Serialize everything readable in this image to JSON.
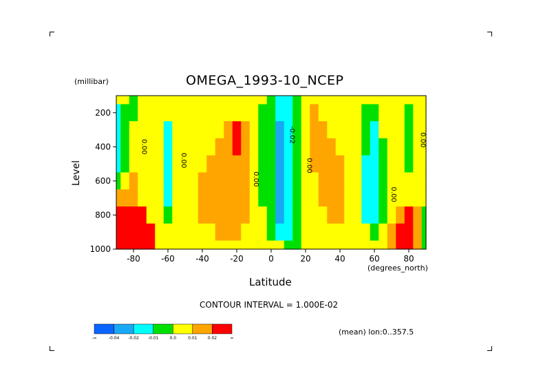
{
  "chart_data": {
    "type": "heatmap",
    "title": "OMEGA_1993-10_NCEP",
    "ylabel": "Level",
    "y_units": "(millibar)",
    "xlabel": "Latitude",
    "x_units": "(degrees_north)",
    "xlim": [
      -90,
      90
    ],
    "ylim": [
      1000,
      100
    ],
    "x_ticks": [
      -80,
      -60,
      -40,
      -20,
      0,
      20,
      40,
      60,
      80
    ],
    "x_tick_labels": [
      "-80",
      "-60",
      "-40",
      "-20",
      "0",
      "20",
      "40",
      "60",
      "80"
    ],
    "y_ticks": [
      200,
      400,
      600,
      800,
      1000
    ],
    "y_tick_labels": [
      "200",
      "400",
      "600",
      "800",
      "1000"
    ],
    "contour_interval_text": "CONTOUR INTERVAL = 1.000E-02",
    "mean_text": "(mean) lon:0..357.5",
    "contour_labels": [
      {
        "text": "0.00",
        "lat": -75,
        "level": 400
      },
      {
        "text": "0.00",
        "lat": -52,
        "level": 480
      },
      {
        "text": "0.00",
        "lat": -10,
        "level": 590
      },
      {
        "text": "-0.02",
        "lat": 11,
        "level": 330
      },
      {
        "text": "0.00",
        "lat": 21,
        "level": 510
      },
      {
        "text": "0.00",
        "lat": 70,
        "level": 680
      },
      {
        "text": "0.00",
        "lat": 87,
        "level": 360
      }
    ],
    "colorbar": {
      "colors": [
        "#0a64ff",
        "#19a8f5",
        "#00ffff",
        "#00e000",
        "#ffff00",
        "#ffa500",
        "#ff0000"
      ],
      "labels": [
        "-∞",
        "-0.04",
        "-0.02",
        "-0.01",
        "0.0",
        "0.01",
        "0.02",
        "∞"
      ]
    },
    "value_bins": {
      "edges": [
        -0.04,
        -0.02,
        -0.01,
        0.0,
        0.01,
        0.02
      ],
      "note_levels": "mb"
    },
    "lat": [
      -90,
      -85,
      -80,
      -75,
      -70,
      -65,
      -60,
      -55,
      -50,
      -45,
      -40,
      -35,
      -30,
      -25,
      -20,
      -15,
      -10,
      -5,
      0,
      5,
      10,
      15,
      20,
      25,
      30,
      35,
      40,
      45,
      50,
      55,
      60,
      65,
      70,
      75,
      80,
      85,
      90
    ],
    "level": [
      100,
      200,
      300,
      400,
      500,
      600,
      700,
      800,
      900,
      1000
    ],
    "values": [
      [
        0.0,
        0.0,
        -0.005,
        0.005,
        0.005,
        0.0,
        0.0,
        0.005,
        0.005,
        0.005,
        0.005,
        0.0,
        0.0,
        0.005,
        0.005,
        0.005,
        0.0,
        0.0,
        -0.005,
        -0.015,
        -0.015,
        -0.005,
        0.005,
        0.005,
        0.005,
        0.005,
        0.005,
        0.0,
        0.0,
        0.0,
        0.0,
        0.005,
        0.0,
        0.0,
        0.0,
        0.005,
        0.005
      ],
      [
        -0.015,
        -0.005,
        -0.005,
        0.005,
        0.005,
        0.005,
        0.0,
        0.005,
        0.005,
        0.005,
        0.005,
        0.005,
        0.005,
        0.005,
        0.005,
        0.005,
        0.005,
        -0.005,
        -0.005,
        -0.015,
        -0.015,
        -0.005,
        0.005,
        0.015,
        0.005,
        0.005,
        0.005,
        0.005,
        0.0,
        -0.005,
        -0.005,
        0.005,
        0.005,
        0.0,
        -0.005,
        0.0,
        0.005
      ],
      [
        -0.015,
        -0.005,
        0.0,
        0.005,
        0.005,
        0.0,
        -0.015,
        0.0,
        0.005,
        0.005,
        0.005,
        0.005,
        0.005,
        0.015,
        0.025,
        0.015,
        0.005,
        -0.005,
        -0.005,
        -0.035,
        -0.015,
        -0.005,
        0.005,
        0.015,
        0.015,
        0.005,
        0.005,
        0.005,
        0.0,
        -0.005,
        -0.015,
        0.005,
        0.005,
        0.0,
        -0.005,
        0.0,
        0.005
      ],
      [
        -0.015,
        -0.005,
        0.0,
        0.005,
        0.005,
        0.0,
        -0.015,
        0.0,
        0.005,
        0.005,
        0.005,
        0.005,
        0.015,
        0.015,
        0.025,
        0.015,
        0.005,
        -0.005,
        -0.005,
        -0.035,
        -0.015,
        -0.005,
        0.005,
        0.015,
        0.015,
        0.015,
        0.005,
        0.005,
        0.0,
        -0.005,
        -0.015,
        -0.005,
        0.005,
        0.0,
        -0.005,
        0.0,
        0.005
      ],
      [
        -0.015,
        -0.005,
        0.005,
        0.005,
        0.005,
        0.0,
        -0.015,
        0.0,
        0.005,
        0.005,
        0.005,
        0.015,
        0.015,
        0.015,
        0.015,
        0.015,
        0.005,
        -0.005,
        -0.005,
        -0.035,
        -0.015,
        -0.005,
        0.005,
        0.015,
        0.015,
        0.015,
        0.015,
        0.005,
        0.0,
        -0.015,
        -0.015,
        -0.005,
        0.005,
        0.0,
        -0.005,
        0.0,
        0.005
      ],
      [
        -0.005,
        0.005,
        0.015,
        0.005,
        0.005,
        0.0,
        -0.015,
        0.0,
        0.005,
        0.005,
        0.015,
        0.015,
        0.015,
        0.015,
        0.015,
        0.015,
        0.005,
        -0.005,
        -0.005,
        -0.035,
        -0.015,
        -0.005,
        0.005,
        0.005,
        0.015,
        0.015,
        0.015,
        0.005,
        0.0,
        -0.015,
        -0.015,
        -0.005,
        0.005,
        0.005,
        0.0,
        0.0,
        0.005
      ],
      [
        0.015,
        0.015,
        0.015,
        0.005,
        0.005,
        0.0,
        -0.015,
        0.0,
        0.005,
        0.005,
        0.015,
        0.015,
        0.015,
        0.015,
        0.015,
        0.015,
        0.005,
        -0.005,
        -0.005,
        -0.035,
        -0.015,
        -0.005,
        0.005,
        0.005,
        0.015,
        0.015,
        0.015,
        0.005,
        0.0,
        -0.015,
        -0.015,
        -0.005,
        0.005,
        0.005,
        0.005,
        0.0,
        0.005
      ],
      [
        0.035,
        0.035,
        0.025,
        0.025,
        0.005,
        0.0,
        -0.005,
        0.0,
        0.005,
        0.005,
        0.015,
        0.015,
        0.015,
        0.015,
        0.015,
        0.015,
        0.005,
        0.0,
        -0.005,
        -0.035,
        -0.015,
        -0.005,
        0.005,
        0.005,
        0.005,
        0.015,
        0.015,
        0.005,
        0.0,
        -0.015,
        -0.015,
        -0.005,
        0.005,
        0.015,
        0.025,
        0.015,
        -0.005
      ],
      [
        0.035,
        0.035,
        0.035,
        0.025,
        0.025,
        0.0,
        0.0,
        0.0,
        0.0,
        0.005,
        0.005,
        0.005,
        0.015,
        0.015,
        0.015,
        0.005,
        0.005,
        0.0,
        -0.005,
        -0.015,
        -0.015,
        -0.005,
        0.005,
        0.005,
        0.005,
        0.005,
        0.005,
        0.005,
        0.005,
        0.0,
        -0.005,
        0.0,
        0.015,
        0.025,
        0.025,
        0.015,
        -0.005
      ],
      [
        0.035,
        0.035,
        0.035,
        0.025,
        0.025,
        0.0,
        0.0,
        0.0,
        0.0,
        0.0,
        0.0,
        0.0,
        0.0,
        0.005,
        0.005,
        0.005,
        0.005,
        0.0,
        0.0,
        0.0,
        -0.005,
        -0.005,
        0.0,
        0.005,
        0.005,
        0.005,
        0.005,
        0.005,
        0.005,
        0.005,
        0.0,
        0.005,
        0.015,
        0.025,
        0.025,
        0.015,
        -0.005
      ]
    ]
  }
}
